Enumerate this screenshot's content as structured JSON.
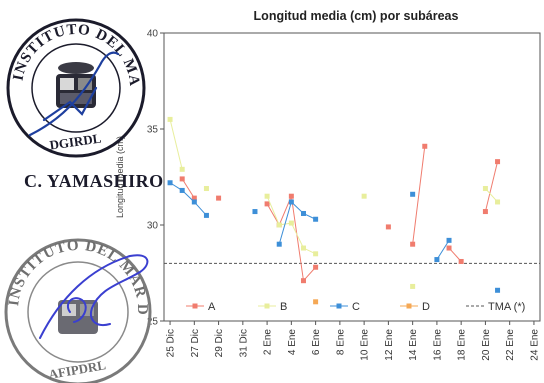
{
  "stamps": {
    "top_seal_text": "INSTITUTO DEL MAR DEL PERU",
    "top_seal_bottom": "DGIRDL",
    "signature_name": "C. YAMASHIRO",
    "bottom_seal_text": "INSTITUTO DEL MAR DEL PERU",
    "bottom_seal_bottom": "AFIPDRL"
  },
  "chart_data": {
    "type": "line",
    "title": "Longitud media (cm) por subáreas",
    "ylabel": "Longitud media (cm)",
    "xlabel": "",
    "ylim": [
      25,
      40
    ],
    "yticks": [
      25,
      30,
      35,
      40
    ],
    "categories": [
      "25 Dic",
      "27 Dic",
      "29 Dic",
      "31 Dic",
      "2 Ene",
      "4 Ene",
      "6 Ene",
      "8 Ene",
      "10 Ene",
      "12 Ene",
      "14 Ene",
      "16 Ene",
      "18 Ene",
      "20 Ene",
      "22 Ene",
      "24 Ene"
    ],
    "x_range": [
      24.5,
      55.5
    ],
    "grid": false,
    "reference_line": {
      "name": "TMA (*)",
      "y": 28,
      "color": "#555555"
    },
    "legend_position": "bottom",
    "series": [
      {
        "name": "A",
        "color": "#f07c6e",
        "segments": [
          [
            [
              26,
              32.4
            ],
            [
              27,
              31.4
            ]
          ],
          [
            [
              29,
              31.4
            ]
          ],
          [
            [
              33,
              31.1
            ],
            [
              34,
              30.0
            ],
            [
              35,
              31.5
            ],
            [
              36,
              27.1
            ],
            [
              37,
              27.8
            ]
          ],
          [
            [
              43,
              29.9
            ]
          ],
          [
            [
              45,
              29.0
            ],
            [
              46,
              34.1
            ]
          ],
          [
            [
              48,
              28.8
            ],
            [
              49,
              28.1
            ]
          ],
          [
            [
              51,
              30.7
            ],
            [
              52,
              33.3
            ]
          ]
        ]
      },
      {
        "name": "B",
        "color": "#e8ee9c",
        "segments": [
          [
            [
              25,
              35.5
            ],
            [
              26,
              32.9
            ]
          ],
          [
            [
              28,
              31.9
            ]
          ],
          [
            [
              33,
              31.5
            ],
            [
              34,
              30.0
            ],
            [
              35,
              30.1
            ],
            [
              36,
              28.8
            ],
            [
              37,
              28.5
            ]
          ],
          [
            [
              41,
              31.5
            ]
          ],
          [
            [
              45,
              26.8
            ]
          ],
          [
            [
              51,
              31.9
            ],
            [
              52,
              31.2
            ]
          ]
        ]
      },
      {
        "name": "C",
        "color": "#3d8fd8",
        "segments": [
          [
            [
              25,
              32.2
            ],
            [
              26,
              31.8
            ],
            [
              27,
              31.2
            ],
            [
              28,
              30.5
            ]
          ],
          [
            [
              32,
              30.7
            ]
          ],
          [
            [
              34,
              29.0
            ],
            [
              35,
              31.2
            ],
            [
              36,
              30.6
            ],
            [
              37,
              30.3
            ]
          ],
          [
            [
              45,
              31.6
            ]
          ],
          [
            [
              47,
              28.2
            ],
            [
              48,
              29.2
            ]
          ],
          [
            [
              52,
              26.6
            ]
          ]
        ]
      },
      {
        "name": "D",
        "color": "#f5a855",
        "segments": [
          [
            [
              37,
              26.0
            ]
          ]
        ]
      }
    ]
  }
}
